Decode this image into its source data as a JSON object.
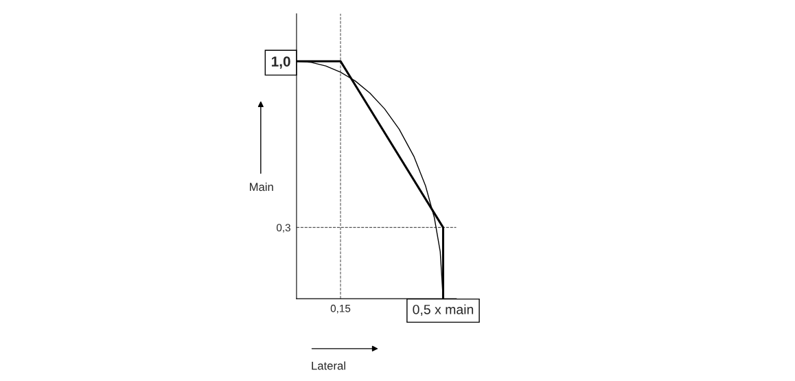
{
  "chart_data": {
    "type": "line",
    "xlabel": "Lateral",
    "ylabel": "Main",
    "series": [
      {
        "color": "#000000",
        "x": [
          0,
          0.15,
          0.5,
          0.5
        ],
        "values": [
          1.0,
          1.0,
          0.3,
          0.0
        ]
      },
      {
        "color": "#000000",
        "x": [
          0,
          0.05,
          0.1,
          0.15,
          0.2,
          0.25,
          0.3,
          0.35,
          0.4,
          0.44,
          0.47,
          0.49,
          0.5
        ],
        "values": [
          1.0,
          0.995,
          0.98,
          0.954,
          0.917,
          0.866,
          0.8,
          0.714,
          0.6,
          0.475,
          0.341,
          0.199,
          0.0
        ]
      }
    ],
    "xlim": [
      0,
      0.545
    ],
    "ylim": [
      0,
      1.2
    ],
    "xticks": [
      {
        "value": 0.15,
        "label": "0,15"
      },
      {
        "value": 0.5,
        "label": "0,5 x main"
      }
    ],
    "yticks": [
      {
        "value": 0.3,
        "label": "0,3"
      },
      {
        "value": 1.0,
        "label": "1,0"
      }
    ],
    "ref_lines": [
      {
        "axis": "x",
        "value": 0.15,
        "line_style": "dashed",
        "color": "#555555"
      },
      {
        "axis": "y",
        "value": 0.3,
        "line_style": "dashed",
        "color": "#555555"
      }
    ],
    "grid": false,
    "legend": false,
    "marker": "none",
    "line_style": "solid"
  }
}
